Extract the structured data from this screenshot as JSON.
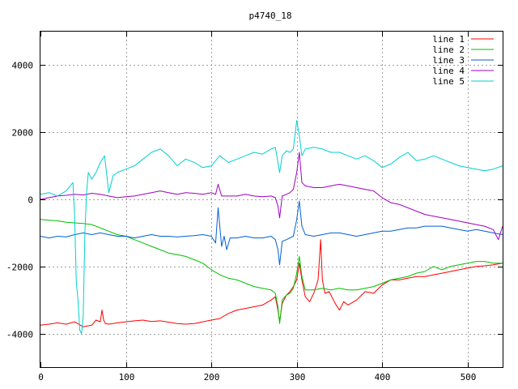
{
  "chart_data": {
    "type": "line",
    "title": "p4740_18",
    "xlabel": "",
    "ylabel": "",
    "xlim": [
      0,
      541
    ],
    "ylim": [
      -5000,
      5000
    ],
    "xticks": [
      0,
      100,
      200,
      300,
      400,
      500
    ],
    "yticks": [
      -4000,
      -2000,
      0,
      2000,
      4000
    ],
    "grid": true,
    "legend_position": "top-right",
    "series": [
      {
        "name": "line 1",
        "color": "#ff0000",
        "x": [
          0,
          10,
          20,
          30,
          40,
          50,
          60,
          65,
          70,
          72,
          74,
          76,
          80,
          90,
          100,
          110,
          120,
          130,
          140,
          150,
          160,
          170,
          180,
          190,
          200,
          210,
          220,
          230,
          240,
          250,
          260,
          270,
          275,
          278,
          280,
          283,
          288,
          292,
          296,
          300,
          303,
          306,
          310,
          315,
          320,
          325,
          328,
          330,
          333,
          338,
          345,
          350,
          355,
          360,
          370,
          380,
          390,
          400,
          410,
          420,
          430,
          440,
          450,
          460,
          470,
          480,
          490,
          500,
          510,
          520,
          530,
          541
        ],
        "values": [
          -3750,
          -3720,
          -3680,
          -3720,
          -3650,
          -3800,
          -3750,
          -3600,
          -3650,
          -3300,
          -3600,
          -3700,
          -3720,
          -3680,
          -3650,
          -3620,
          -3600,
          -3640,
          -3620,
          -3660,
          -3700,
          -3720,
          -3700,
          -3650,
          -3600,
          -3550,
          -3400,
          -3300,
          -3250,
          -3200,
          -3150,
          -3000,
          -2900,
          -3300,
          -3650,
          -3100,
          -2850,
          -2750,
          -2600,
          -2400,
          -1900,
          -2400,
          -2900,
          -3050,
          -2800,
          -2400,
          -1200,
          -2400,
          -2800,
          -2750,
          -3100,
          -3300,
          -3050,
          -3150,
          -3000,
          -2750,
          -2800,
          -2550,
          -2400,
          -2400,
          -2350,
          -2300,
          -2300,
          -2250,
          -2200,
          -2150,
          -2100,
          -2050,
          -2000,
          -1980,
          -1950,
          -1900
        ]
      },
      {
        "name": "line 2",
        "color": "#00c000",
        "x": [
          0,
          10,
          20,
          30,
          40,
          50,
          60,
          70,
          80,
          90,
          100,
          110,
          120,
          130,
          140,
          150,
          160,
          170,
          180,
          190,
          200,
          210,
          220,
          230,
          240,
          250,
          260,
          270,
          275,
          278,
          280,
          283,
          288,
          292,
          296,
          300,
          303,
          306,
          310,
          320,
          330,
          340,
          350,
          360,
          370,
          380,
          390,
          400,
          410,
          420,
          430,
          440,
          450,
          460,
          470,
          480,
          490,
          500,
          510,
          520,
          530,
          541
        ],
        "values": [
          -600,
          -620,
          -640,
          -680,
          -700,
          -720,
          -750,
          -850,
          -950,
          -1050,
          -1100,
          -1200,
          -1300,
          -1400,
          -1500,
          -1600,
          -1650,
          -1700,
          -1800,
          -1900,
          -2100,
          -2250,
          -2350,
          -2400,
          -2500,
          -2600,
          -2650,
          -2700,
          -2800,
          -3200,
          -3700,
          -3000,
          -2850,
          -2800,
          -2650,
          -2200,
          -1700,
          -2300,
          -2700,
          -2700,
          -2650,
          -2700,
          -2650,
          -2700,
          -2700,
          -2650,
          -2600,
          -2500,
          -2400,
          -2350,
          -2300,
          -2200,
          -2150,
          -2000,
          -2100,
          -2000,
          -1950,
          -1900,
          -1850,
          -1850,
          -1900,
          -1900
        ]
      },
      {
        "name": "line 3",
        "color": "#0060d0",
        "x": [
          0,
          10,
          20,
          30,
          40,
          50,
          60,
          70,
          80,
          90,
          100,
          110,
          120,
          130,
          140,
          150,
          160,
          170,
          180,
          190,
          200,
          205,
          208,
          212,
          215,
          218,
          222,
          230,
          240,
          250,
          260,
          270,
          275,
          278,
          280,
          283,
          288,
          292,
          296,
          300,
          303,
          306,
          310,
          320,
          330,
          340,
          350,
          360,
          370,
          380,
          390,
          400,
          410,
          420,
          430,
          440,
          450,
          460,
          470,
          480,
          490,
          500,
          510,
          520,
          530,
          541
        ],
        "values": [
          -1100,
          -1150,
          -1100,
          -1120,
          -1050,
          -1000,
          -1050,
          -1000,
          -1050,
          -1100,
          -1100,
          -1150,
          -1100,
          -1050,
          -1100,
          -1100,
          -1120,
          -1100,
          -1080,
          -1050,
          -1100,
          -1300,
          -250,
          -1400,
          -1100,
          -1500,
          -1150,
          -1150,
          -1100,
          -1150,
          -1150,
          -1100,
          -1200,
          -1500,
          -1950,
          -1250,
          -1200,
          -1150,
          -1100,
          -600,
          -50,
          -800,
          -1050,
          -1100,
          -1050,
          -1000,
          -1000,
          -1050,
          -1100,
          -1050,
          -1000,
          -950,
          -950,
          -900,
          -850,
          -850,
          -800,
          -800,
          -800,
          -850,
          -900,
          -950,
          -900,
          -950,
          -1000,
          -1050
        ]
      },
      {
        "name": "line 4",
        "color": "#a000c0",
        "x": [
          0,
          10,
          20,
          30,
          40,
          50,
          60,
          70,
          80,
          90,
          100,
          110,
          120,
          130,
          140,
          150,
          160,
          170,
          180,
          190,
          200,
          205,
          208,
          212,
          220,
          230,
          240,
          250,
          260,
          270,
          275,
          278,
          280,
          283,
          288,
          292,
          296,
          300,
          303,
          306,
          310,
          320,
          330,
          340,
          350,
          360,
          370,
          380,
          390,
          400,
          410,
          420,
          430,
          440,
          450,
          460,
          470,
          480,
          490,
          500,
          510,
          520,
          530,
          536,
          541
        ],
        "values": [
          0,
          50,
          100,
          120,
          150,
          130,
          180,
          150,
          100,
          50,
          80,
          100,
          150,
          200,
          250,
          200,
          150,
          200,
          180,
          150,
          200,
          150,
          450,
          100,
          100,
          100,
          150,
          100,
          80,
          100,
          50,
          -200,
          -550,
          100,
          150,
          200,
          300,
          800,
          1400,
          500,
          400,
          350,
          350,
          400,
          450,
          400,
          350,
          300,
          250,
          50,
          -100,
          -150,
          -250,
          -350,
          -450,
          -500,
          -550,
          -600,
          -650,
          -700,
          -750,
          -800,
          -900,
          -1200,
          -800
        ]
      },
      {
        "name": "line 5",
        "color": "#00d0d0",
        "x": [
          0,
          10,
          20,
          30,
          38,
          40,
          42,
          44,
          46,
          48,
          50,
          52,
          54,
          56,
          60,
          65,
          70,
          75,
          80,
          85,
          90,
          100,
          110,
          120,
          130,
          140,
          150,
          160,
          170,
          180,
          190,
          200,
          210,
          220,
          230,
          240,
          250,
          260,
          270,
          275,
          280,
          283,
          288,
          292,
          296,
          300,
          303,
          306,
          310,
          320,
          330,
          340,
          350,
          360,
          370,
          380,
          390,
          400,
          410,
          420,
          430,
          440,
          450,
          460,
          470,
          480,
          490,
          500,
          510,
          520,
          530,
          541
        ],
        "values": [
          150,
          200,
          100,
          250,
          500,
          -500,
          -2500,
          -3000,
          -3900,
          -4000,
          -3500,
          -1000,
          200,
          800,
          600,
          800,
          1100,
          1300,
          200,
          700,
          800,
          900,
          1000,
          1200,
          1400,
          1500,
          1300,
          1000,
          1200,
          1100,
          950,
          1000,
          1300,
          1100,
          1200,
          1300,
          1400,
          1350,
          1500,
          1550,
          800,
          1300,
          1450,
          1400,
          1500,
          2350,
          1900,
          1300,
          1500,
          1550,
          1500,
          1400,
          1400,
          1300,
          1200,
          1300,
          1150,
          950,
          1050,
          1250,
          1400,
          1150,
          1200,
          1300,
          1200,
          1100,
          1000,
          950,
          900,
          850,
          900,
          1000
        ]
      }
    ]
  }
}
